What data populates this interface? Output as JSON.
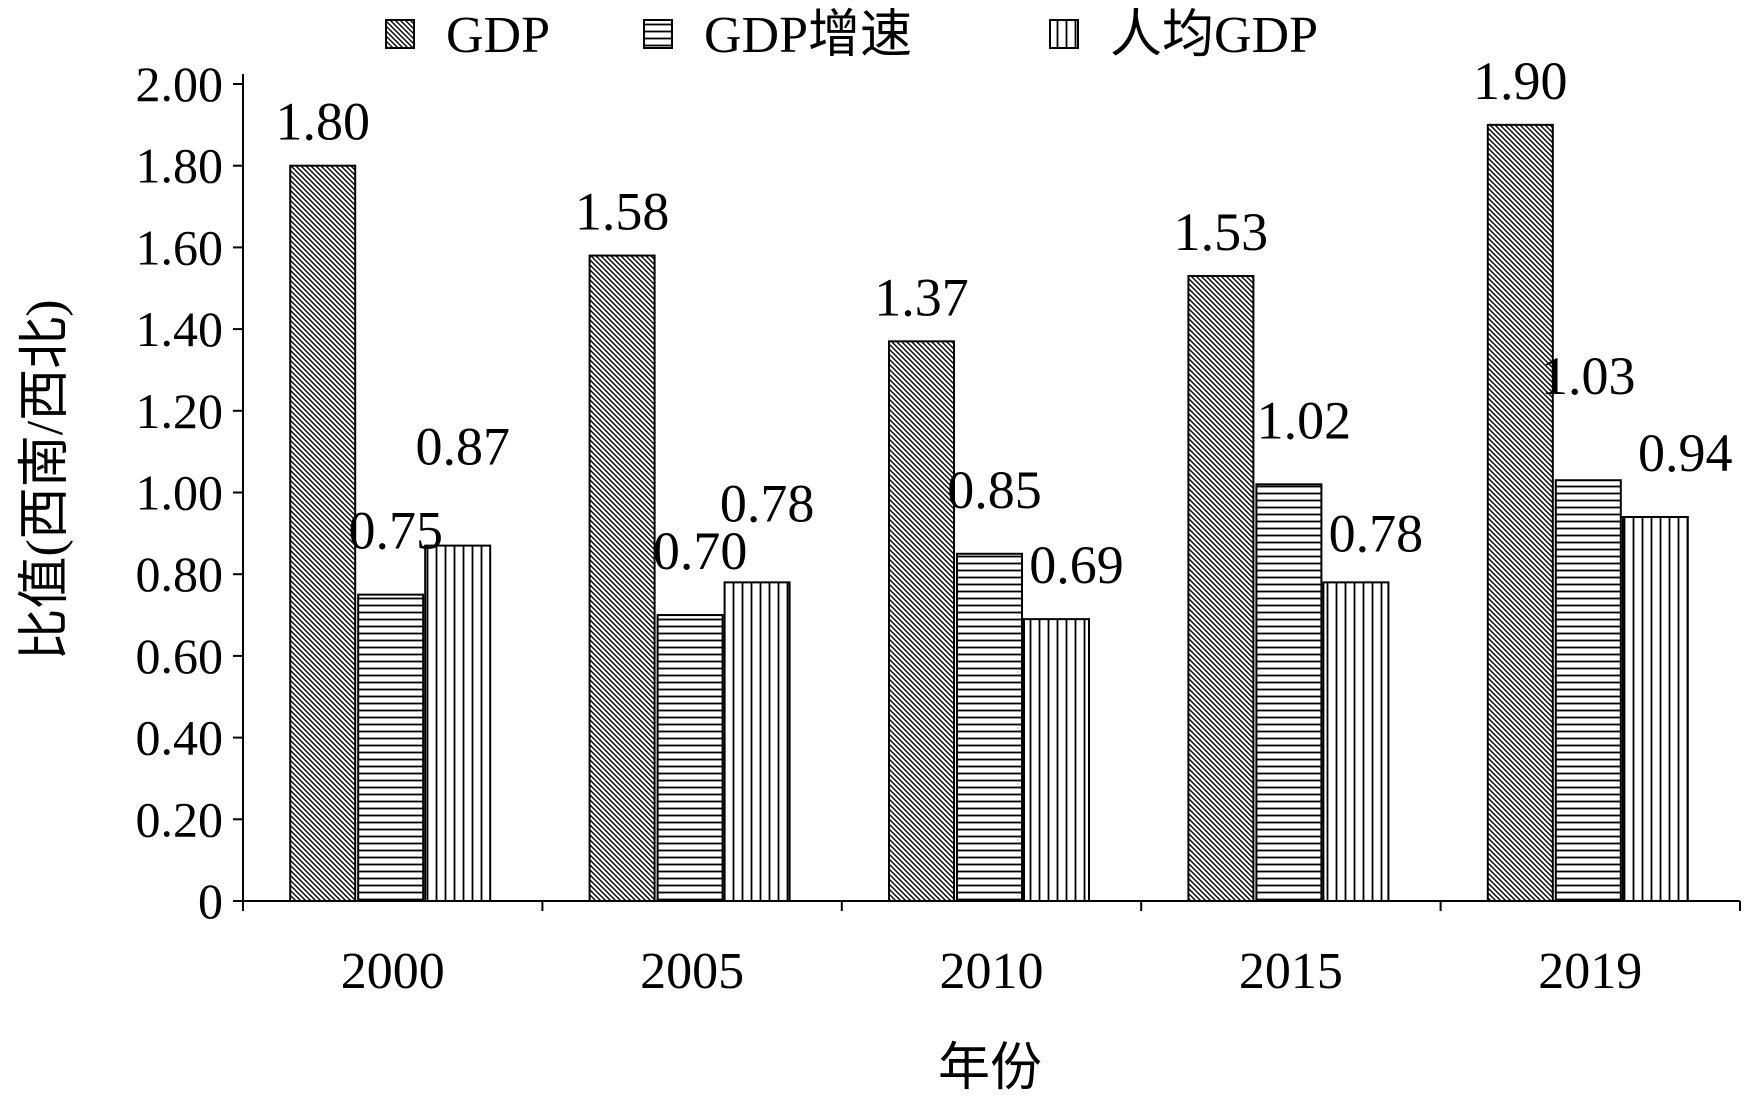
{
  "chart_data": {
    "type": "bar",
    "categories": [
      "2000",
      "2005",
      "2010",
      "2015",
      "2019"
    ],
    "series": [
      {
        "name": "GDP",
        "pattern": "diagonal",
        "values": [
          1.8,
          1.58,
          1.37,
          1.53,
          1.9
        ]
      },
      {
        "name": "GDP增速",
        "pattern": "horizontal",
        "values": [
          0.75,
          0.7,
          0.85,
          1.02,
          1.03
        ]
      },
      {
        "name": "人均GDP",
        "pattern": "vertical",
        "values": [
          0.87,
          0.78,
          0.69,
          0.78,
          0.94
        ]
      }
    ],
    "data_labels": [
      [
        "1.80",
        "1.58",
        "1.37",
        "1.53",
        "1.90"
      ],
      [
        "0.75",
        "0.70",
        "0.85",
        "1.02",
        "1.03"
      ],
      [
        "0.87",
        "0.78",
        "0.69",
        "0.78",
        "0.94"
      ]
    ],
    "xlabel": "年份",
    "ylabel": "比值(西南/西北)",
    "ylim": [
      0,
      2.0
    ],
    "yticks": [
      0,
      0.2,
      0.4,
      0.6,
      0.8,
      1.0,
      1.2,
      1.4,
      1.6,
      1.8,
      2.0
    ],
    "ytick_labels": [
      "0",
      "0.20",
      "0.40",
      "0.60",
      "0.80",
      "1.00",
      "1.20",
      "1.40",
      "1.60",
      "1.80",
      "2.00"
    ],
    "grid": false,
    "legend_position": "top",
    "colors": {
      "bar_outline": "#000000",
      "hatch": "#000000",
      "background": "#ffffff"
    }
  }
}
